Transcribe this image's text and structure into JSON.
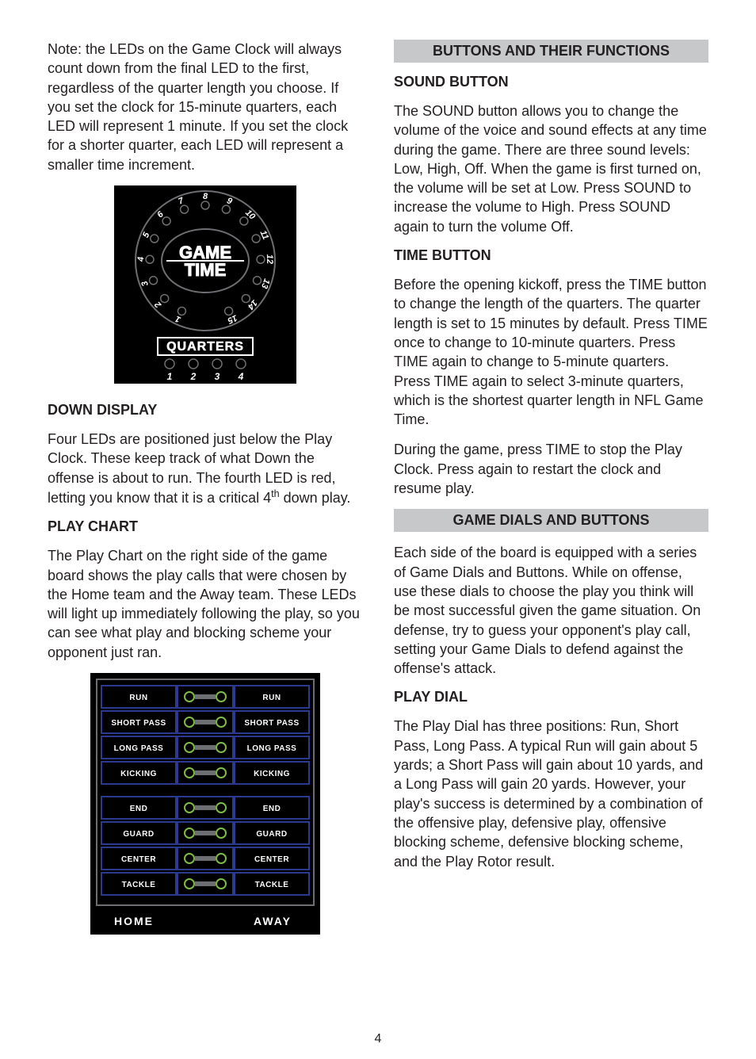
{
  "left": {
    "intro": "Note: the LEDs on the Game Clock will always count down from the final LED to the first, regardless of the quarter length you choose. If you set the clock for 15-minute quarters, each LED will represent 1 minute.  If you set the clock for a shorter quarter, each LED will represent a smaller time increment.",
    "clock": {
      "brand_line1": "GAME",
      "brand_line2": "TIME",
      "numbers": [
        "1",
        "2",
        "3",
        "4",
        "5",
        "6",
        "7",
        "8",
        "9",
        "10",
        "11",
        "12",
        "13",
        "14",
        "15"
      ],
      "quarters_label": "QUARTERS",
      "quarters_nums": [
        "1",
        "2",
        "3",
        "4"
      ]
    },
    "down_heading": "DOWN DISPLAY",
    "down_body": "Four LEDs are positioned just below the Play Clock.  These keep track of what Down the offense is about to run.  The fourth LED is red, letting you know that it is a critical 4",
    "down_body_sup": "th",
    "down_body_tail": " down play.",
    "playchart_heading": "PLAY CHART",
    "playchart_body": "The Play Chart on the right side of the game board shows the play calls that were chosen by the Home team and the Away team.  These LEDs will light up immediately following the play, so you can see what play and blocking scheme your opponent just ran.",
    "chart": {
      "rows_top": [
        "RUN",
        "SHORT PASS",
        "LONG PASS",
        "KICKING"
      ],
      "rows_bottom": [
        "END",
        "GUARD",
        "CENTER",
        "TACKLE"
      ],
      "footer_left": "HOME",
      "footer_right": "AWAY"
    }
  },
  "right": {
    "banner1": "BUTTONS AND THEIR FUNCTIONS",
    "sound_heading": "SOUND BUTTON",
    "sound_body": "The SOUND button allows you to change the volume of the voice and sound effects at any time during the game.  There are three sound levels: Low, High, Off.  When the game is first turned on, the volume will be set at Low.  Press SOUND to increase the volume to High.  Press SOUND again to turn the volume Off.",
    "time_heading": "TIME BUTTON",
    "time_body1": "Before the opening kickoff, press the TIME button to change the length of the quarters.  The quarter length is set to 15 minutes by default.  Press TIME once to change to 10-minute quarters.  Press TIME again to change to 5-minute quarters.  Press TIME again to select 3-minute quarters, which is the shortest quarter length in NFL Game Time.",
    "time_body2": "During the game, press TIME to stop the Play Clock.  Press again to restart the clock and resume play.",
    "banner2": "GAME DIALS AND BUTTONS",
    "dials_body": "Each side of the board is equipped with a series of Game Dials and Buttons.  While on offense, use these dials to choose the play you think will be most successful given the game situation.  On defense, try to guess your opponent's play call, setting your Game Dials to defend against the offense's attack.",
    "playdial_heading": "PLAY DIAL",
    "playdial_body": "The Play Dial has three positions: Run, Short Pass, Long Pass.  A typical Run will gain about 5 yards; a Short Pass will gain about 10 yards, and a Long Pass will gain 20 yards.  However, your play's success is determined by a combination of the offensive play, defensive play, offensive blocking scheme, defensive blocking scheme, and the Play Rotor result."
  },
  "page_number": "4",
  "colors": {
    "text": "#231f20",
    "banner_bg": "#c7c8ca",
    "black": "#000000",
    "white": "#ffffff",
    "led_green": "#7fba42",
    "led_off": "#6d6e71",
    "blue": "#2b3a8f"
  }
}
